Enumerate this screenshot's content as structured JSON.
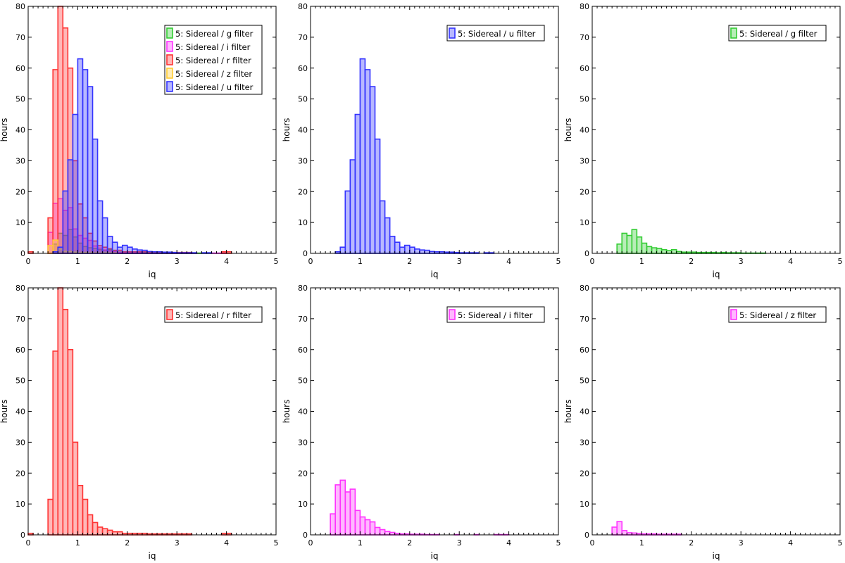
{
  "chart_data": [
    {
      "type": "bar",
      "xlabel": "iq",
      "ylabel": "hours",
      "xlim": [
        0,
        5
      ],
      "ylim": [
        0,
        80
      ],
      "xticks": [
        "0",
        "1",
        "2",
        "3",
        "4",
        "5"
      ],
      "yticks": [
        "0",
        "10",
        "20",
        "30",
        "40",
        "50",
        "60",
        "70",
        "80"
      ],
      "grid": false,
      "legend_position": "top-right",
      "series": [
        {
          "name": "5: Sidereal / g filter",
          "color": "#33cc33",
          "x_start": 0.0,
          "bin_width": 0.1,
          "values": [
            0,
            0,
            0,
            0,
            0,
            3,
            6.5,
            5.8,
            7.7,
            5.3,
            3.3,
            2.2,
            1.8,
            1.6,
            1.2,
            0.9,
            1.2,
            0.6,
            0.4,
            0.4,
            0.4,
            0.3,
            0.3,
            0.3,
            0.3,
            0.2,
            0.3,
            0.2,
            0.2,
            0.2,
            0.1,
            0.1,
            0.1,
            0.1,
            0.1
          ]
        },
        {
          "name": "5: Sidereal / i filter",
          "color": "#ff33ff",
          "x_start": 0.0,
          "bin_width": 0.1,
          "values": [
            0,
            0,
            0,
            0,
            6.8,
            16.2,
            17.7,
            13.9,
            14.8,
            7.9,
            5.8,
            4.9,
            4.2,
            2.4,
            1.7,
            1.1,
            0.8,
            0.5,
            0.3,
            0.3,
            0.2,
            0.2,
            0.2,
            0.1,
            0.1,
            0.1,
            0,
            0,
            0,
            0.1,
            0,
            0,
            0,
            0.1,
            0,
            0,
            0,
            0.1,
            0.1,
            0.1
          ]
        },
        {
          "name": "5: Sidereal / r filter",
          "color": "#ff3333",
          "x_start": 0.0,
          "bin_width": 0.1,
          "values": [
            0.5,
            0,
            0,
            0,
            11.5,
            59.5,
            80,
            73,
            60,
            30,
            16,
            11.5,
            6.5,
            4,
            2.5,
            2,
            1.5,
            1,
            1,
            0.5,
            0.5,
            0.5,
            0.5,
            0.5,
            0.3,
            0.3,
            0.3,
            0.3,
            0.3,
            0.3,
            0.3,
            0.3,
            0.3,
            0,
            0,
            0,
            0,
            0,
            0,
            0.5,
            0.5
          ]
        },
        {
          "name": "5: Sidereal / z filter",
          "color": "#ffcc33",
          "x_start": 0.0,
          "bin_width": 0.1,
          "values": [
            0,
            0,
            0,
            0,
            2.5,
            4.3,
            1.4,
            0.7,
            0.6,
            0.4,
            0.3,
            0.3,
            0.3,
            0.2,
            0.2,
            0.2,
            0.2,
            0.2
          ]
        },
        {
          "name": "5: Sidereal / u filter",
          "color": "#3333ff",
          "x_start": 0.0,
          "bin_width": 0.1,
          "values": [
            0,
            0,
            0,
            0,
            0,
            0.5,
            2,
            20.2,
            30.3,
            45,
            63,
            59.5,
            54,
            37,
            17,
            11.5,
            5.5,
            3.6,
            2,
            2.6,
            2,
            1.4,
            1.1,
            1,
            0.6,
            0.5,
            0.5,
            0.4,
            0.4,
            0.3,
            0.2,
            0.2,
            0.2,
            0.2,
            0,
            0.2,
            0.2
          ]
        }
      ]
    },
    {
      "type": "bar",
      "xlabel": "iq",
      "ylabel": "hours",
      "xlim": [
        0,
        5
      ],
      "ylim": [
        0,
        80
      ],
      "xticks": [
        "0",
        "1",
        "2",
        "3",
        "4",
        "5"
      ],
      "yticks": [
        "0",
        "10",
        "20",
        "30",
        "40",
        "50",
        "60",
        "70",
        "80"
      ],
      "grid": false,
      "legend_position": "top-right",
      "series": [
        {
          "name": "5: Sidereal / u filter",
          "color": "#3333ff",
          "x_start": 0.0,
          "bin_width": 0.1,
          "values": [
            0,
            0,
            0,
            0,
            0,
            0.5,
            2,
            20.2,
            30.3,
            45,
            63,
            59.5,
            54,
            37,
            17,
            11.5,
            5.5,
            3.6,
            2,
            2.6,
            2,
            1.4,
            1.1,
            1,
            0.6,
            0.5,
            0.5,
            0.4,
            0.4,
            0.3,
            0.2,
            0.2,
            0.2,
            0.2,
            0,
            0.2,
            0.2
          ]
        }
      ]
    },
    {
      "type": "bar",
      "xlabel": "iq",
      "ylabel": "hours",
      "xlim": [
        0,
        5
      ],
      "ylim": [
        0,
        80
      ],
      "xticks": [
        "0",
        "1",
        "2",
        "3",
        "4",
        "5"
      ],
      "yticks": [
        "0",
        "10",
        "20",
        "30",
        "40",
        "50",
        "60",
        "70",
        "80"
      ],
      "grid": false,
      "legend_position": "top-right",
      "series": [
        {
          "name": "5: Sidereal / g filter",
          "color": "#33cc33",
          "x_start": 0.0,
          "bin_width": 0.1,
          "values": [
            0,
            0,
            0,
            0,
            0,
            3,
            6.5,
            5.8,
            7.7,
            5.3,
            3.3,
            2.2,
            1.8,
            1.6,
            1.2,
            0.9,
            1.2,
            0.6,
            0.4,
            0.4,
            0.4,
            0.3,
            0.3,
            0.3,
            0.3,
            0.2,
            0.3,
            0.2,
            0.2,
            0.2,
            0.1,
            0.1,
            0.1,
            0.1,
            0.1
          ]
        }
      ]
    },
    {
      "type": "bar",
      "xlabel": "iq",
      "ylabel": "hours",
      "xlim": [
        0,
        5
      ],
      "ylim": [
        0,
        80
      ],
      "xticks": [
        "0",
        "1",
        "2",
        "3",
        "4",
        "5"
      ],
      "yticks": [
        "0",
        "10",
        "20",
        "30",
        "40",
        "50",
        "60",
        "70",
        "80"
      ],
      "grid": false,
      "legend_position": "top-right",
      "series": [
        {
          "name": "5: Sidereal / r filter",
          "color": "#ff3333",
          "x_start": 0.0,
          "bin_width": 0.1,
          "values": [
            0.5,
            0,
            0,
            0,
            11.5,
            59.5,
            80,
            73,
            60,
            30,
            16,
            11.5,
            6.5,
            4,
            2.5,
            2,
            1.5,
            1,
            1,
            0.5,
            0.5,
            0.5,
            0.5,
            0.5,
            0.3,
            0.3,
            0.3,
            0.3,
            0.3,
            0.3,
            0.3,
            0.3,
            0.3,
            0,
            0,
            0,
            0,
            0,
            0,
            0.5,
            0.5
          ]
        }
      ]
    },
    {
      "type": "bar",
      "xlabel": "iq",
      "ylabel": "hours",
      "xlim": [
        0,
        5
      ],
      "ylim": [
        0,
        80
      ],
      "xticks": [
        "0",
        "1",
        "2",
        "3",
        "4",
        "5"
      ],
      "yticks": [
        "0",
        "10",
        "20",
        "30",
        "40",
        "50",
        "60",
        "70",
        "80"
      ],
      "grid": false,
      "legend_position": "top-right",
      "series": [
        {
          "name": "5: Sidereal / i filter",
          "color": "#ff33ff",
          "x_start": 0.0,
          "bin_width": 0.1,
          "values": [
            0,
            0,
            0,
            0,
            6.8,
            16.2,
            17.7,
            13.9,
            14.8,
            7.9,
            5.8,
            4.9,
            4.2,
            2.4,
            1.7,
            1.1,
            0.8,
            0.5,
            0.3,
            0.3,
            0.2,
            0.2,
            0.2,
            0.1,
            0.1,
            0.1,
            0,
            0,
            0,
            0.1,
            0,
            0,
            0,
            0.1,
            0,
            0,
            0,
            0.1,
            0.1,
            0.1
          ]
        }
      ]
    },
    {
      "type": "bar",
      "xlabel": "iq",
      "ylabel": "hours",
      "xlim": [
        0,
        5
      ],
      "ylim": [
        0,
        80
      ],
      "xticks": [
        "0",
        "1",
        "2",
        "3",
        "4",
        "5"
      ],
      "yticks": [
        "0",
        "10",
        "20",
        "30",
        "40",
        "50",
        "60",
        "70",
        "80"
      ],
      "grid": false,
      "legend_position": "top-right",
      "series": [
        {
          "name": "5: Sidereal / z filter",
          "color": "#ff33ff",
          "x_start": 0.0,
          "bin_width": 0.1,
          "values": [
            0,
            0,
            0,
            0,
            2.5,
            4.3,
            1.4,
            0.7,
            0.6,
            0.4,
            0.3,
            0.3,
            0.3,
            0.2,
            0.2,
            0.2,
            0.2,
            0.2
          ]
        }
      ]
    }
  ]
}
